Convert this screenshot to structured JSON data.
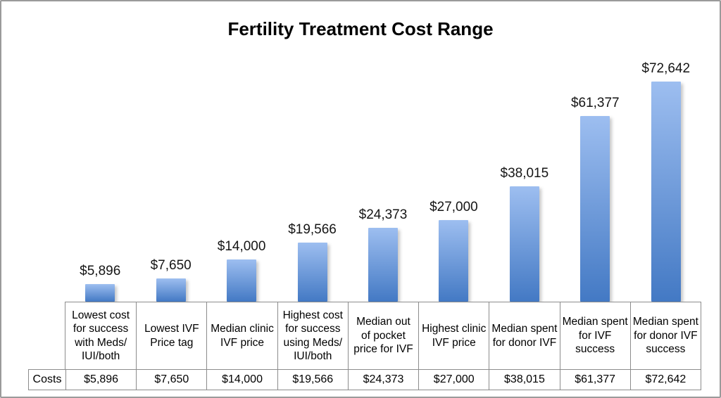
{
  "chart_data": {
    "type": "bar",
    "title": "Fertility Treatment Cost Range",
    "categories": [
      "Lowest cost for success with Meds/ IUI/both",
      "Lowest IVF Price tag",
      "Median clinic IVF price",
      "Highest cost for success using Meds/ IUI/both",
      "Median out of pocket price for IVF",
      "Highest clinic IVF price",
      "Median spent for donor IVF",
      "Median spent for IVF success",
      "Median spent for donor IVF success"
    ],
    "values": [
      5896,
      7650,
      14000,
      19566,
      24373,
      27000,
      38015,
      61377,
      72642
    ],
    "value_labels": [
      "$5,896",
      "$7,650",
      "$14,000",
      "$19,566",
      "$24,373",
      "$27,000",
      "$38,015",
      "$61,377",
      "$72,642"
    ],
    "row_header": "Costs",
    "xlabel": "",
    "ylabel": "",
    "ylim": [
      0,
      72642
    ],
    "grid": false,
    "legend": false,
    "data_labels_shown": true,
    "data_table_shown": true,
    "bar_color_top": "#9DBEF0",
    "bar_color_bottom": "#4379C4",
    "table_border_color": "#8c8c8c",
    "frame_border_color": "#9a9a9a"
  }
}
